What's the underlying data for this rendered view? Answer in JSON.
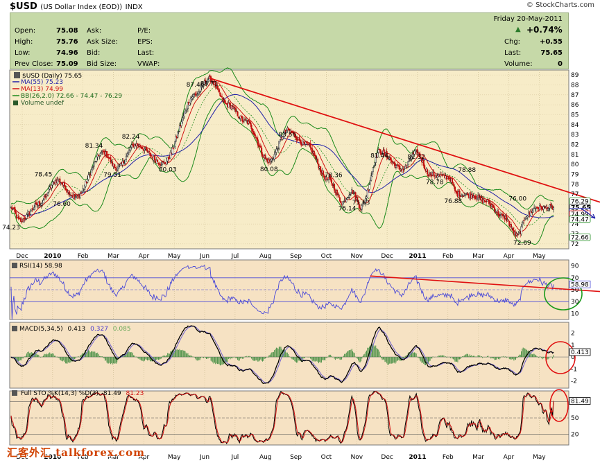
{
  "header": {
    "symbol": "$USD",
    "name": "(US Dollar Index (EOD))",
    "exchange": "INDX",
    "brand": "© StockCharts.com"
  },
  "quote": {
    "date": "Friday  20-May-2011",
    "change_pct": "+0.74%",
    "labels": {
      "open": "Open:",
      "high": "High:",
      "low": "Low:",
      "prev_close": "Prev Close:",
      "ask": "Ask:",
      "ask_size": "Ask Size:",
      "bid": "Bid:",
      "bid_size": "Bid Size:",
      "pe": "P/E:",
      "eps": "EPS:",
      "last": "Last:",
      "vwap": "VWAP:",
      "chg": "Chg:",
      "last2": "Last:",
      "volume": "Volume:"
    },
    "values": {
      "open": "75.08",
      "high": "75.76",
      "low": "74.96",
      "prev_close": "75.09",
      "chg": "+0.55",
      "last": "75.65",
      "volume": "0"
    }
  },
  "legend": {
    "price": "$USD (Daily) 75.65",
    "ma55": "MA(55) 75.23",
    "ma13": "MA(13) 74.99",
    "bb": "BB(26,2.0) 72.66 - 74.47 - 76.29",
    "volume": "Volume undef",
    "rsi": "RSI(14) 58.98",
    "macd_label": "MACD(5,34,5)",
    "macd_v1": "0.413",
    "macd_v2": "0.327",
    "macd_v3": "0.085",
    "sto_label": "Full STO %K(14,3) %D(3)",
    "sto_k": "81.49",
    "sto_d": "81.23"
  },
  "watermark": "汇客外汇 talkforex.com",
  "colors": {
    "price_bg": "#f7ecc8",
    "panel_bg": "#f6e2c3",
    "quote_bg": "#c6d9a8",
    "ma55": "#1f1fa8",
    "ma13": "#d01010",
    "bb": "#1a8a1a",
    "trendline": "#e01010",
    "rsi": "#4848d8",
    "macd_signal": "#7060d0",
    "sto_d": "#d01010",
    "circle_green": "#1a9a1a",
    "circle_red": "#e01010"
  },
  "chart_data": [
    {
      "type": "candlestick",
      "title": "$USD (Daily) 75.65",
      "x_labels": [
        "Dec",
        "2010",
        "Feb",
        "Mar",
        "Apr",
        "May",
        "Jun",
        "Jul",
        "Aug",
        "Sep",
        "Oct",
        "Nov",
        "Dec",
        "2011",
        "Feb",
        "Mar",
        "Apr",
        "May"
      ],
      "y_ticks": [
        72,
        73,
        74,
        75,
        76,
        77,
        78,
        79,
        80,
        81,
        82,
        83,
        84,
        85,
        86,
        87,
        88,
        89
      ],
      "ylim": [
        71.5,
        89.5
      ],
      "annotations": [
        {
          "label": "74.23",
          "value": 74.23
        },
        {
          "label": "78.45",
          "value": 78.45
        },
        {
          "label": "76.60",
          "value": 76.6
        },
        {
          "label": "81.34",
          "value": 81.34
        },
        {
          "label": "79.51",
          "value": 79.51
        },
        {
          "label": "82.24",
          "value": 82.24
        },
        {
          "label": "80.03",
          "value": 80.03
        },
        {
          "label": "87.46",
          "value": 87.46
        },
        {
          "label": "88.71",
          "value": 88.71
        },
        {
          "label": "83.56",
          "value": 83.56
        },
        {
          "label": "80.08",
          "value": 80.08
        },
        {
          "label": "78.36",
          "value": 78.36
        },
        {
          "label": "76.14",
          "value": 76.14
        },
        {
          "label": "75.63",
          "value": 75.63
        },
        {
          "label": "81.44",
          "value": 81.44
        },
        {
          "label": "81.32",
          "value": 81.32
        },
        {
          "label": "78.78",
          "value": 78.78
        },
        {
          "label": "78.88",
          "value": 78.88
        },
        {
          "label": "76.88",
          "value": 76.88
        },
        {
          "label": "76.00",
          "value": 76.0
        },
        {
          "label": "72.69",
          "value": 72.69
        }
      ],
      "right_tags": [
        "76.29",
        "75.65",
        "75.23",
        "74.99",
        "74.47",
        "72.66"
      ],
      "close_anchors": [
        [
          0,
          75.6
        ],
        [
          2,
          74.3
        ],
        [
          6,
          76.0
        ],
        [
          10,
          78.4
        ],
        [
          14,
          76.7
        ],
        [
          20,
          81.2
        ],
        [
          23,
          79.6
        ],
        [
          27,
          82.0
        ],
        [
          33,
          80.1
        ],
        [
          40,
          87.0
        ],
        [
          43,
          88.6
        ],
        [
          47,
          86.0
        ],
        [
          51,
          84.3
        ],
        [
          56,
          80.3
        ],
        [
          60,
          83.4
        ],
        [
          64,
          82.0
        ],
        [
          69,
          78.4
        ],
        [
          72,
          76.2
        ],
        [
          74,
          77.3
        ],
        [
          76,
          75.7
        ],
        [
          80,
          81.3
        ],
        [
          85,
          79.5
        ],
        [
          88,
          81.2
        ],
        [
          91,
          79.0
        ],
        [
          95,
          78.7
        ],
        [
          97,
          77.0
        ],
        [
          100,
          76.9
        ],
        [
          103,
          76.3
        ],
        [
          107,
          74.7
        ],
        [
          110,
          72.8
        ],
        [
          112,
          74.9
        ],
        [
          114,
          75.65
        ]
      ],
      "trendline": [
        {
          "x": 43,
          "y": 88.7
        },
        {
          "x": 118,
          "y": 76.2
        }
      ]
    },
    {
      "type": "line",
      "title": "RSI(14) 58.98",
      "y_ticks": [
        10,
        30,
        50,
        70,
        90
      ],
      "ylim": [
        0,
        100
      ],
      "last": 58.98,
      "trendline": [
        {
          "x": 78,
          "y": 73
        },
        {
          "x": 118,
          "y": 47
        }
      ]
    },
    {
      "type": "line",
      "title": "MACD(5,34,5)",
      "y_ticks": [
        -2,
        -1,
        0,
        1,
        2
      ],
      "ylim": [
        -2.6,
        2.9
      ],
      "series": [
        {
          "name": "MACD",
          "last": 0.413
        },
        {
          "name": "Signal",
          "last": 0.327
        },
        {
          "name": "Histogram",
          "last": 0.085
        }
      ]
    },
    {
      "type": "line",
      "title": "Full STO %K(14,3) %D(3)",
      "y_ticks": [
        20,
        50,
        80
      ],
      "ylim": [
        0,
        100
      ],
      "series": [
        {
          "name": "%K",
          "last": 81.49
        },
        {
          "name": "%D",
          "last": 81.23
        }
      ]
    }
  ]
}
